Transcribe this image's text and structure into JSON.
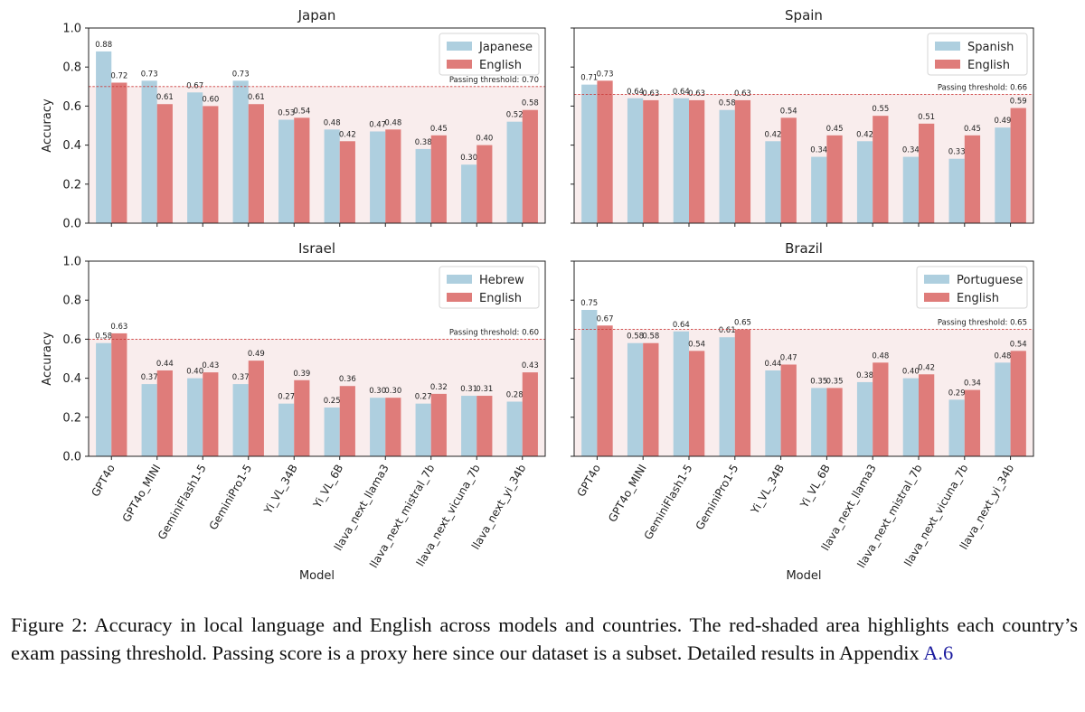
{
  "chart_data": [
    {
      "type": "bar",
      "title": "Japan",
      "xlabel": "",
      "ylabel": "Accuracy",
      "ylim": [
        0,
        1.0
      ],
      "yticks": [
        "0.0",
        "0.2",
        "0.4",
        "0.6",
        "0.8",
        "1.0"
      ],
      "categories": [
        "GPT4o",
        "GPT4o_MINI",
        "GeminiFlash1-5",
        "GeminiPro1-5",
        "Yi_VL_34B",
        "Yi_VL_6B",
        "llava_next_llama3",
        "llava_next_mistral_7b",
        "llava_next_vicuna_7b",
        "llava_next_yi_34b"
      ],
      "series": [
        {
          "name": "Japanese",
          "values": [
            0.88,
            0.73,
            0.67,
            0.73,
            0.53,
            0.48,
            0.47,
            0.38,
            0.3,
            0.52
          ],
          "labels": [
            "0.88",
            "0.73",
            "0.67",
            "0.73",
            "0.53",
            "0.48",
            "0.47",
            "0.38",
            "0.30",
            "0.52"
          ]
        },
        {
          "name": "English",
          "values": [
            0.72,
            0.61,
            0.6,
            0.61,
            0.54,
            0.42,
            0.48,
            0.45,
            0.4,
            0.58
          ],
          "labels": [
            "0.72",
            "0.61",
            "0.60",
            "0.61",
            "0.54",
            "0.42",
            "0.48",
            "0.45",
            "0.40",
            "0.58"
          ]
        }
      ],
      "threshold": 0.7,
      "threshold_label": "Passing threshold: 0.70",
      "legend": "top-right"
    },
    {
      "type": "bar",
      "title": "Spain",
      "xlabel": "",
      "ylabel": "",
      "ylim": [
        0,
        1.0
      ],
      "categories": [
        "GPT4o",
        "GPT4o_MINI",
        "GeminiFlash1-5",
        "GeminiPro1-5",
        "Yi_VL_34B",
        "Yi_VL_6B",
        "llava_next_llama3",
        "llava_next_mistral_7b",
        "llava_next_vicuna_7b",
        "llava_next_yi_34b"
      ],
      "series": [
        {
          "name": "Spanish",
          "values": [
            0.71,
            0.64,
            0.64,
            0.58,
            0.42,
            0.34,
            0.42,
            0.34,
            0.33,
            0.49
          ],
          "labels": [
            "0.71",
            "0.64",
            "0.64",
            "0.58",
            "0.42",
            "0.34",
            "0.42",
            "0.34",
            "0.33",
            "0.49"
          ]
        },
        {
          "name": "English",
          "values": [
            0.73,
            0.63,
            0.63,
            0.63,
            0.54,
            0.45,
            0.55,
            0.51,
            0.45,
            0.59
          ],
          "labels": [
            "0.73",
            "0.63",
            "0.63",
            "0.63",
            "0.54",
            "0.45",
            "0.55",
            "0.51",
            "0.45",
            "0.59"
          ]
        }
      ],
      "threshold": 0.66,
      "threshold_label": "Passing threshold: 0.66",
      "legend": "top-right"
    },
    {
      "type": "bar",
      "title": "Israel",
      "xlabel": "Model",
      "ylabel": "Accuracy",
      "ylim": [
        0,
        1.0
      ],
      "yticks": [
        "0.0",
        "0.2",
        "0.4",
        "0.6",
        "0.8",
        "1.0"
      ],
      "categories": [
        "GPT4o",
        "GPT4o_MINI",
        "GeminiFlash1-5",
        "GeminiPro1-5",
        "Yi_VL_34B",
        "Yi_VL_6B",
        "llava_next_llama3",
        "llava_next_mistral_7b",
        "llava_next_vicuna_7b",
        "llava_next_yi_34b"
      ],
      "series": [
        {
          "name": "Hebrew",
          "values": [
            0.58,
            0.37,
            0.4,
            0.37,
            0.27,
            0.25,
            0.3,
            0.27,
            0.31,
            0.28
          ],
          "labels": [
            "0.58",
            "0.37",
            "0.40",
            "0.37",
            "0.27",
            "0.25",
            "0.30",
            "0.27",
            "0.31",
            "0.28"
          ]
        },
        {
          "name": "English",
          "values": [
            0.63,
            0.44,
            0.43,
            0.49,
            0.39,
            0.36,
            0.3,
            0.32,
            0.31,
            0.43
          ],
          "labels": [
            "0.63",
            "0.44",
            "0.43",
            "0.49",
            "0.39",
            "0.36",
            "0.30",
            "0.32",
            "0.31",
            "0.43"
          ]
        }
      ],
      "threshold": 0.6,
      "threshold_label": "Passing threshold: 0.60",
      "legend": "top-right"
    },
    {
      "type": "bar",
      "title": "Brazil",
      "xlabel": "Model",
      "ylabel": "",
      "ylim": [
        0,
        1.0
      ],
      "categories": [
        "GPT4o",
        "GPT4o_MINI",
        "GeminiFlash1-5",
        "GeminiPro1-5",
        "Yi_VL_34B",
        "Yi_VL_6B",
        "llava_next_llama3",
        "llava_next_mistral_7b",
        "llava_next_vicuna_7b",
        "llava_next_yi_34b"
      ],
      "series": [
        {
          "name": "Portuguese",
          "values": [
            0.75,
            0.58,
            0.64,
            0.61,
            0.44,
            0.35,
            0.38,
            0.4,
            0.29,
            0.48
          ],
          "labels": [
            "0.75",
            "0.58",
            "0.64",
            "0.61",
            "0.44",
            "0.35",
            "0.38",
            "0.40",
            "0.29",
            "0.48"
          ]
        },
        {
          "name": "English",
          "values": [
            0.67,
            0.58,
            0.54,
            0.65,
            0.47,
            0.35,
            0.48,
            0.42,
            0.34,
            0.54
          ],
          "labels": [
            "0.67",
            "0.58",
            "0.54",
            "0.65",
            "0.47",
            "0.35",
            "0.48",
            "0.42",
            "0.34",
            "0.54"
          ]
        }
      ],
      "threshold": 0.65,
      "threshold_label": "Passing threshold: 0.65",
      "legend": "top-right"
    }
  ],
  "colors": {
    "local": "#aecfdf",
    "english": "#df7c7a",
    "threshold_line": "#cc3b3b",
    "shade": "#f9eded"
  },
  "caption": {
    "text": "Figure 2: Accuracy in local language and English across models and countries. The red-shaded area highlights each country’s exam passing threshold. Passing score is a proxy here since our dataset is a subset. Detailed results in Appendix ",
    "link": "A.6"
  }
}
